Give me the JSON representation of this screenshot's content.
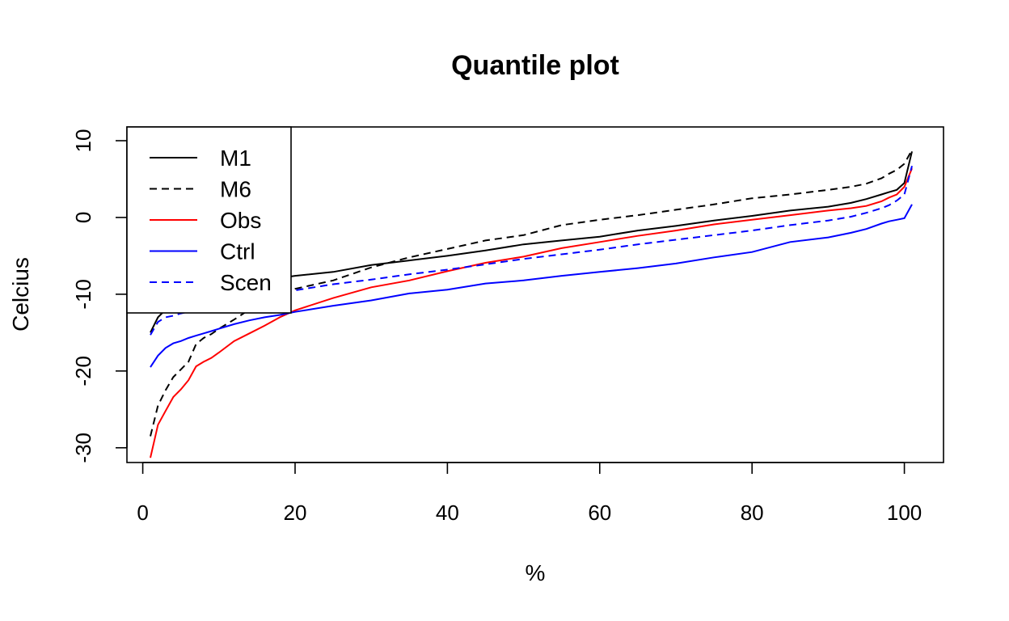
{
  "chart_data": {
    "type": "line",
    "title": "Quantile plot",
    "xlabel": "%",
    "ylabel": "Celcius",
    "xlim": [
      1,
      101
    ],
    "ylim": [
      -31.5,
      10
    ],
    "xticks": [
      0,
      20,
      40,
      60,
      80,
      100
    ],
    "yticks": [
      -30,
      -20,
      -10,
      0,
      10
    ],
    "grid": false,
    "legend_position": "top-left",
    "x": [
      1,
      2,
      3,
      4,
      5,
      6,
      7,
      8,
      9,
      10,
      12,
      14,
      16,
      18,
      20,
      25,
      30,
      35,
      40,
      45,
      50,
      55,
      60,
      65,
      70,
      75,
      80,
      85,
      90,
      93,
      95,
      97,
      98,
      99,
      100,
      101
    ],
    "series": [
      {
        "name": "M1",
        "color": "#000000",
        "dash": "solid",
        "values": [
          -15,
          -13,
          -12,
          -11,
          -10.4,
          -10,
          -9.6,
          -9.3,
          -9.1,
          -9,
          -8.7,
          -8.4,
          -8.1,
          -7.9,
          -7.6,
          -7.1,
          -6.2,
          -5.6,
          -5.0,
          -4.3,
          -3.5,
          -3.0,
          -2.5,
          -1.7,
          -1.1,
          -0.4,
          0.2,
          0.9,
          1.4,
          1.9,
          2.4,
          3.0,
          3.3,
          3.6,
          4.5,
          8.6
        ]
      },
      {
        "name": "M6",
        "color": "#000000",
        "dash": "dashed",
        "values": [
          -28.5,
          -24.5,
          -22.5,
          -20.8,
          -19.8,
          -18.8,
          -16.5,
          -15.7,
          -15.2,
          -14.5,
          -13.3,
          -12,
          -11,
          -10.1,
          -9.3,
          -8.2,
          -6.5,
          -5.2,
          -4.1,
          -3.0,
          -2.3,
          -1.0,
          -0.3,
          0.3,
          1.0,
          1.7,
          2.5,
          3.0,
          3.6,
          4.0,
          4.4,
          5.1,
          5.7,
          6.2,
          7.0,
          8.8
        ]
      },
      {
        "name": "Obs",
        "color": "#ff0000",
        "dash": "solid",
        "values": [
          -31.3,
          -27,
          -25.2,
          -23.4,
          -22.4,
          -21.2,
          -19.4,
          -18.8,
          -18.3,
          -17.6,
          -16.1,
          -15.1,
          -14.1,
          -13,
          -12.1,
          -10.5,
          -9.1,
          -8.2,
          -7.0,
          -5.9,
          -5.1,
          -4.0,
          -3.2,
          -2.4,
          -1.7,
          -0.9,
          -0.3,
          0.3,
          0.9,
          1.2,
          1.5,
          2.1,
          2.6,
          3.0,
          4.0,
          6.4
        ]
      },
      {
        "name": "Ctrl",
        "color": "#0000ff",
        "dash": "solid",
        "values": [
          -19.5,
          -18,
          -17,
          -16.4,
          -16.1,
          -15.7,
          -15.4,
          -15.1,
          -14.8,
          -14.5,
          -13.9,
          -13.4,
          -13.0,
          -12.7,
          -12.3,
          -11.5,
          -10.8,
          -9.9,
          -9.4,
          -8.6,
          -8.2,
          -7.6,
          -7.1,
          -6.6,
          -6.0,
          -5.2,
          -4.5,
          -3.2,
          -2.6,
          -2.0,
          -1.5,
          -0.8,
          -0.5,
          -0.3,
          -0.1,
          1.7
        ]
      },
      {
        "name": "Scen",
        "color": "#0000ff",
        "dash": "dashed",
        "values": [
          -15.3,
          -13.6,
          -13,
          -12.8,
          -12.5,
          -12.3,
          -12,
          -11.7,
          -11.4,
          -11.1,
          -10.7,
          -10.4,
          -10.1,
          -9.8,
          -9.5,
          -8.7,
          -8.1,
          -7.4,
          -6.8,
          -6.1,
          -5.4,
          -4.8,
          -4.2,
          -3.5,
          -2.9,
          -2.3,
          -1.7,
          -1.0,
          -0.4,
          0.1,
          0.6,
          1.2,
          1.6,
          2.2,
          3.0,
          6.7
        ]
      }
    ]
  }
}
